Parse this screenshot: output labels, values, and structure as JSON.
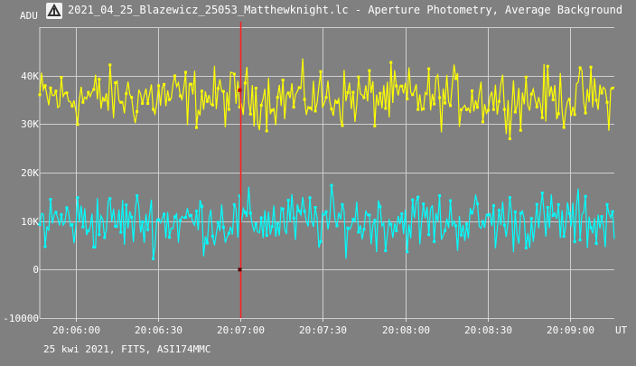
{
  "window": {
    "title": "2021_04_25_Blazewicz_25053_Matthewknight.lc - Aperture Photometry, Average Background",
    "icon": "app-icon"
  },
  "chart_data": {
    "type": "line",
    "ylabel": "ADU",
    "xlabel": "UT",
    "y_ticks": [
      "40K",
      "30K",
      "20K",
      "10K",
      "0",
      "-10000"
    ],
    "y_tick_values": [
      40000,
      30000,
      20000,
      10000,
      0,
      -10000
    ],
    "x_ticks": [
      "20:06:00",
      "20:06:30",
      "20:07:00",
      "20:07:30",
      "20:08:00",
      "20:08:30",
      "20:09:00"
    ],
    "ylim": [
      -10000,
      50000
    ],
    "xlim": [
      "20:05:47",
      "20:09:16"
    ],
    "grid": true,
    "cursor": {
      "time": "20:07:00",
      "values": [
        37000,
        0
      ]
    },
    "series": [
      {
        "color": "#ffff00",
        "mean": 35500,
        "spread": 3000,
        "min": 26000,
        "max": 46000
      },
      {
        "color": "#00ffff",
        "mean": 10000,
        "spread": 3000,
        "min": 2000,
        "max": 18000
      }
    ]
  },
  "footer": {
    "info": "25 kwi 2021, FITS, ASI174MMC"
  }
}
